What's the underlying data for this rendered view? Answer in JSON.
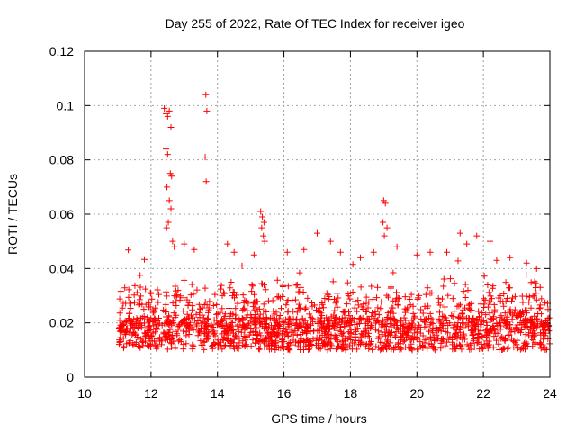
{
  "chart_data": {
    "type": "scatter",
    "title": "Day 255 of 2022, Rate Of TEC Index for receiver igeo",
    "xlabel": "GPS time / hours",
    "ylabel": "ROTI / TECUs",
    "xlim": [
      10,
      24
    ],
    "ylim": [
      0,
      0.12
    ],
    "xticks": [
      "10",
      "12",
      "14",
      "16",
      "18",
      "20",
      "22",
      "24"
    ],
    "yticks": [
      "0",
      "0.02",
      "0.04",
      "0.06",
      "0.08",
      "0.1",
      "0.12"
    ],
    "grid": true,
    "marker": "plus",
    "color": "#ff0000",
    "series": [
      {
        "x": [
          12.4,
          12.45,
          12.5,
          12.55,
          12.6,
          12.45,
          12.5,
          12.58,
          12.62,
          12.48,
          12.55,
          12.52,
          12.47,
          12.6,
          12.65,
          13.65,
          13.68,
          13.63,
          13.66,
          15.3,
          15.35,
          15.4,
          15.33,
          15.38,
          15.42,
          19.0,
          19.05,
          18.98,
          19.1,
          19.02,
          17.0,
          17.4,
          21.3,
          21.8,
          22.2,
          12.7,
          13.0,
          13.3,
          14.3,
          14.5,
          15.1,
          16.1,
          16.6,
          17.7,
          18.3,
          18.7,
          19.4,
          20.0,
          20.4,
          20.9,
          21.5,
          22.4,
          22.8,
          23.3,
          23.6
        ],
        "y": [
          0.099,
          0.097,
          0.096,
          0.098,
          0.092,
          0.084,
          0.082,
          0.075,
          0.074,
          0.07,
          0.065,
          0.057,
          0.055,
          0.062,
          0.05,
          0.104,
          0.098,
          0.081,
          0.072,
          0.061,
          0.059,
          0.057,
          0.055,
          0.052,
          0.05,
          0.065,
          0.064,
          0.057,
          0.055,
          0.052,
          0.053,
          0.05,
          0.053,
          0.052,
          0.05,
          0.048,
          0.049,
          0.047,
          0.049,
          0.046,
          0.045,
          0.046,
          0.047,
          0.046,
          0.044,
          0.046,
          0.048,
          0.045,
          0.046,
          0.046,
          0.049,
          0.043,
          0.044,
          0.042,
          0.04
        ]
      }
    ]
  }
}
